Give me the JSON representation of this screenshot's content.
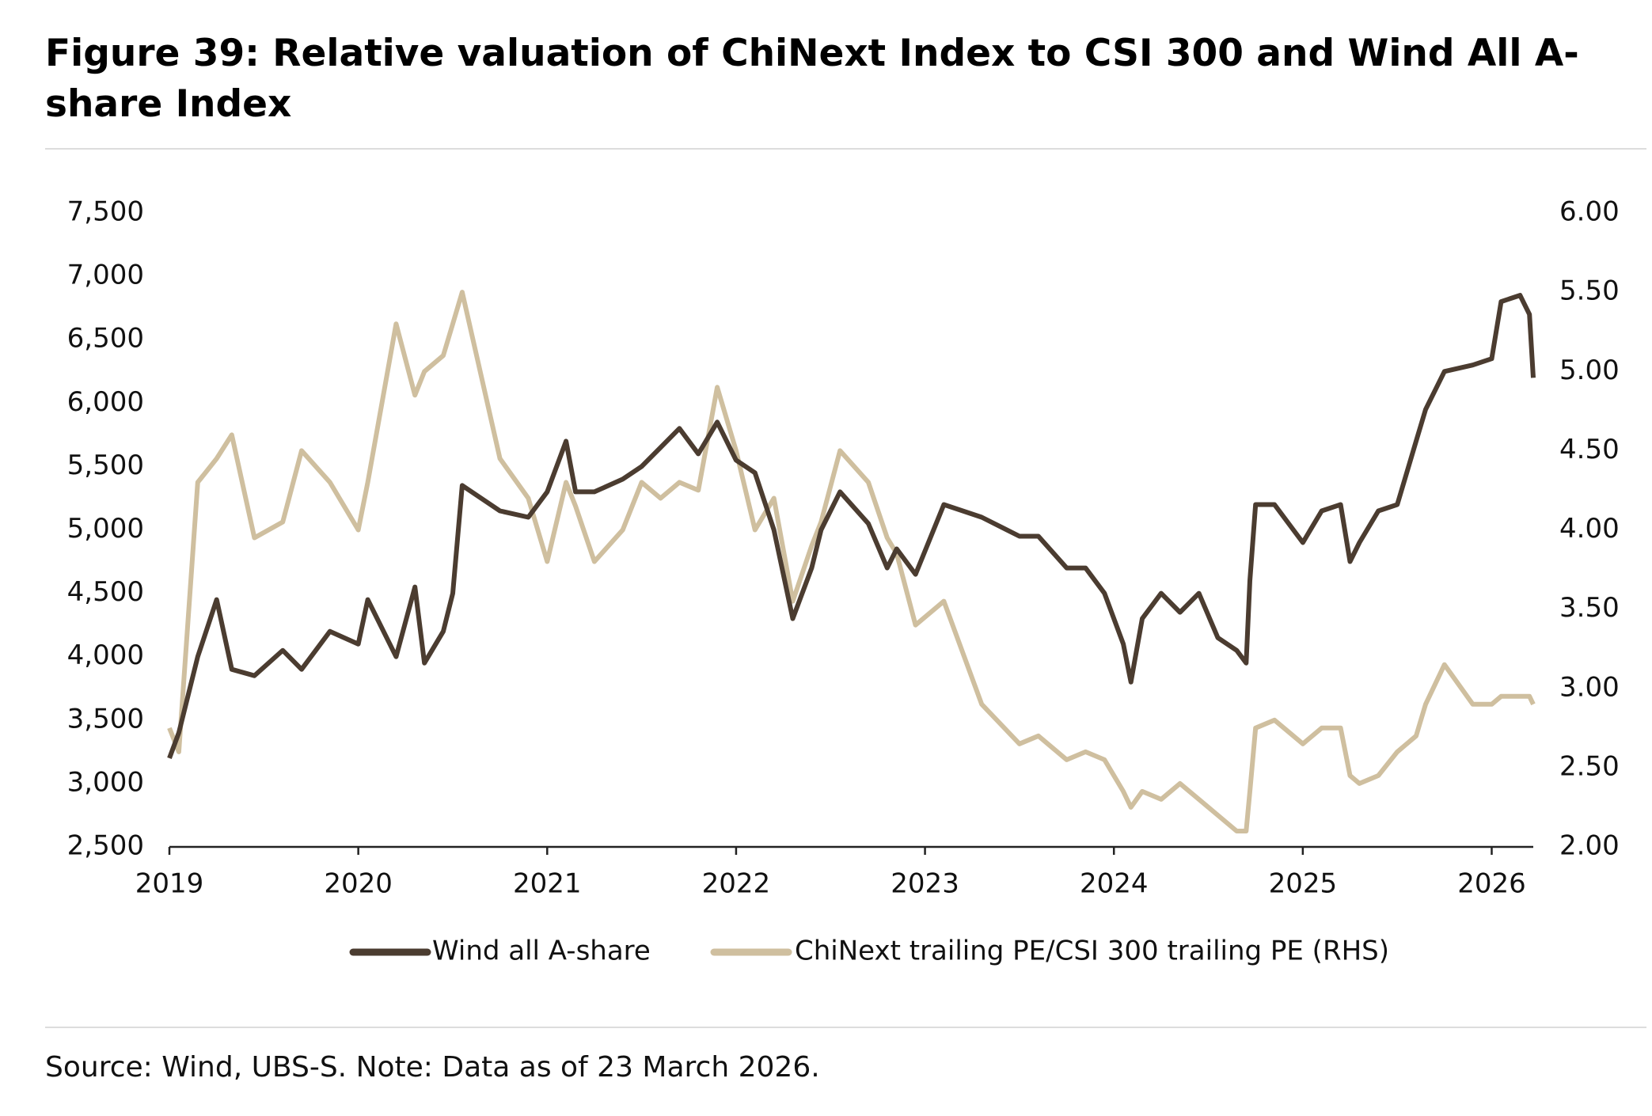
{
  "chart_data": {
    "type": "line",
    "title": "Figure 39: Relative valuation of ChiNext Index to CSI 300 and Wind All A-share Index",
    "note": "Source: Wind, UBS-S. Note: Data as of 23 March 2026.",
    "x": [
      2019.0,
      2019.05,
      2019.15,
      2019.25,
      2019.33,
      2019.45,
      2019.6,
      2019.7,
      2019.85,
      2020.0,
      2020.05,
      2020.2,
      2020.3,
      2020.35,
      2020.45,
      2020.5,
      2020.55,
      2020.75,
      2020.9,
      2021.0,
      2021.1,
      2021.15,
      2021.25,
      2021.4,
      2021.5,
      2021.6,
      2021.7,
      2021.8,
      2021.9,
      2022.0,
      2022.1,
      2022.2,
      2022.3,
      2022.4,
      2022.45,
      2022.55,
      2022.7,
      2022.8,
      2022.85,
      2022.95,
      2023.1,
      2023.3,
      2023.5,
      2023.6,
      2023.75,
      2023.85,
      2023.95,
      2024.05,
      2024.09,
      2024.15,
      2024.25,
      2024.35,
      2024.45,
      2024.55,
      2024.65,
      2024.7,
      2024.72,
      2024.75,
      2024.85,
      2025.0,
      2025.1,
      2025.2,
      2025.25,
      2025.3,
      2025.4,
      2025.5,
      2025.6,
      2025.65,
      2025.75,
      2025.9,
      2026.0,
      2026.05,
      2026.15,
      2026.2,
      2026.22
    ],
    "series": [
      {
        "name": "Wind all A-share",
        "color": "#4b3c30",
        "values": [
          3200,
          3400,
          4000,
          4450,
          3900,
          3850,
          4050,
          3900,
          4200,
          4100,
          4450,
          4000,
          4550,
          3950,
          4200,
          4500,
          5350,
          5150,
          5100,
          5300,
          5700,
          5300,
          5300,
          5400,
          5500,
          5650,
          5800,
          5600,
          5850,
          5550,
          5450,
          5000,
          4300,
          4700,
          5000,
          5300,
          5050,
          4700,
          4850,
          4650,
          5200,
          5100,
          4950,
          4950,
          4700,
          4700,
          4500,
          4100,
          3800,
          4300,
          4500,
          4350,
          4500,
          4150,
          4050,
          3950,
          4600,
          5200,
          5200,
          4900,
          5150,
          5200,
          4750,
          4900,
          5150,
          5200,
          5700,
          5950,
          6250,
          6300,
          6350,
          6800,
          6850,
          6700,
          6200
        ]
      },
      {
        "name": "ChiNext trailing PE/CSI 300 trailing PE (RHS)",
        "color": "#cfbf9f",
        "axis": "y2",
        "values": [
          2.75,
          2.6,
          4.3,
          4.45,
          4.6,
          3.95,
          4.05,
          4.5,
          4.3,
          4.0,
          4.3,
          5.3,
          4.85,
          5.0,
          5.1,
          5.3,
          5.5,
          4.45,
          4.2,
          3.8,
          4.3,
          4.15,
          3.8,
          4.0,
          4.3,
          4.2,
          4.3,
          4.25,
          4.9,
          4.5,
          4.0,
          4.2,
          3.55,
          3.9,
          4.05,
          4.5,
          4.3,
          3.95,
          3.85,
          3.4,
          3.55,
          2.9,
          2.65,
          2.7,
          2.55,
          2.6,
          2.55,
          2.35,
          2.25,
          2.35,
          2.3,
          2.4,
          2.3,
          2.2,
          2.1,
          2.1,
          2.35,
          2.75,
          2.8,
          2.65,
          2.75,
          2.75,
          2.45,
          2.4,
          2.45,
          2.6,
          2.7,
          2.9,
          3.15,
          2.9,
          2.9,
          2.95,
          2.95,
          2.95,
          2.9
        ]
      }
    ],
    "xlim": [
      2019,
      2026.22
    ],
    "xticks": [
      2019,
      2020,
      2021,
      2022,
      2023,
      2024,
      2025,
      2026
    ],
    "ylim": [
      2500,
      7500
    ],
    "yticks": [
      {
        "value": 2500,
        "label": "2,500"
      },
      {
        "value": 3000,
        "label": "3,000"
      },
      {
        "value": 3500,
        "label": "3,500"
      },
      {
        "value": 4000,
        "label": "4,000"
      },
      {
        "value": 4500,
        "label": "4,500"
      },
      {
        "value": 5000,
        "label": "5,000"
      },
      {
        "value": 5500,
        "label": "5,500"
      },
      {
        "value": 6000,
        "label": "6,000"
      },
      {
        "value": 6500,
        "label": "6,500"
      },
      {
        "value": 7000,
        "label": "7,000"
      },
      {
        "value": 7500,
        "label": "7,500"
      }
    ],
    "y2lim": [
      2,
      6
    ],
    "y2ticks": [
      {
        "value": 2,
        "label": "2.00"
      },
      {
        "value": 2.5,
        "label": "2.50"
      },
      {
        "value": 3,
        "label": "3.00"
      },
      {
        "value": 3.5,
        "label": "3.50"
      },
      {
        "value": 4,
        "label": "4.00"
      },
      {
        "value": 4.5,
        "label": "4.50"
      },
      {
        "value": 5,
        "label": "5.00"
      },
      {
        "value": 5.5,
        "label": "5.50"
      },
      {
        "value": 6,
        "label": "6.00"
      }
    ],
    "grid": false
  }
}
